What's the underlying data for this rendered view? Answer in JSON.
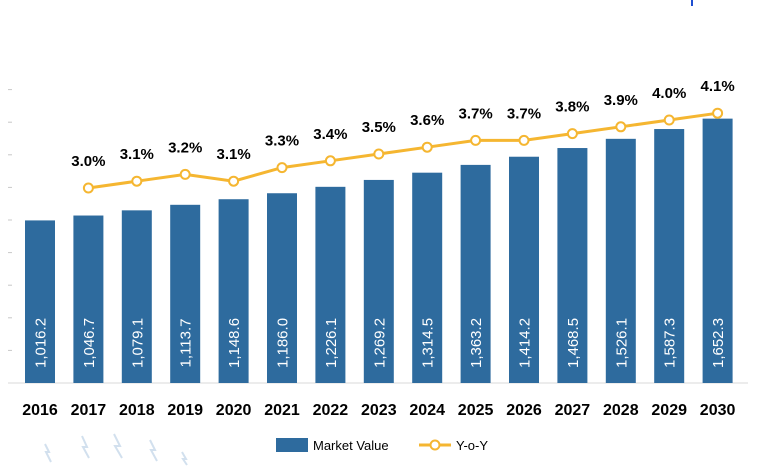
{
  "chart_data": {
    "type": "bar",
    "categories": [
      "2016",
      "2017",
      "2018",
      "2019",
      "2020",
      "2021",
      "2022",
      "2023",
      "2024",
      "2025",
      "2026",
      "2027",
      "2028",
      "2029",
      "2030"
    ],
    "series": [
      {
        "name": "Market Value",
        "type": "bar",
        "color": "#2e6b9e",
        "values": [
          1016.2,
          1046.7,
          1079.1,
          1113.7,
          1148.6,
          1186.0,
          1226.1,
          1269.2,
          1314.5,
          1363.2,
          1414.2,
          1468.5,
          1526.1,
          1587.3,
          1652.3
        ],
        "labels": [
          "1,016.2",
          "1,046.7",
          "1,079.1",
          "1,113.7",
          "1,148.6",
          "1,186.0",
          "1,226.1",
          "1,269.2",
          "1,314.5",
          "1,363.2",
          "1,414.2",
          "1,468.5",
          "1,526.1",
          "1,587.3",
          "1,652.3"
        ]
      },
      {
        "name": "Y-o-Y",
        "type": "line",
        "color": "#f5b631",
        "values": [
          null,
          3.0,
          3.1,
          3.2,
          3.1,
          3.3,
          3.4,
          3.5,
          3.6,
          3.7,
          3.7,
          3.8,
          3.9,
          4.0,
          4.1
        ],
        "labels": [
          "",
          "3.0%",
          "3.1%",
          "3.2%",
          "3.1%",
          "3.3%",
          "3.4%",
          "3.5%",
          "3.6%",
          "3.7%",
          "3.7%",
          "3.8%",
          "3.9%",
          "4.0%",
          "4.1%"
        ]
      }
    ],
    "title": "",
    "xlabel": "",
    "ylabel": "",
    "ylim": [
      0,
      1700
    ],
    "y2lim": [
      0,
      4.6
    ],
    "grid": false,
    "legend": "bottom-center"
  }
}
